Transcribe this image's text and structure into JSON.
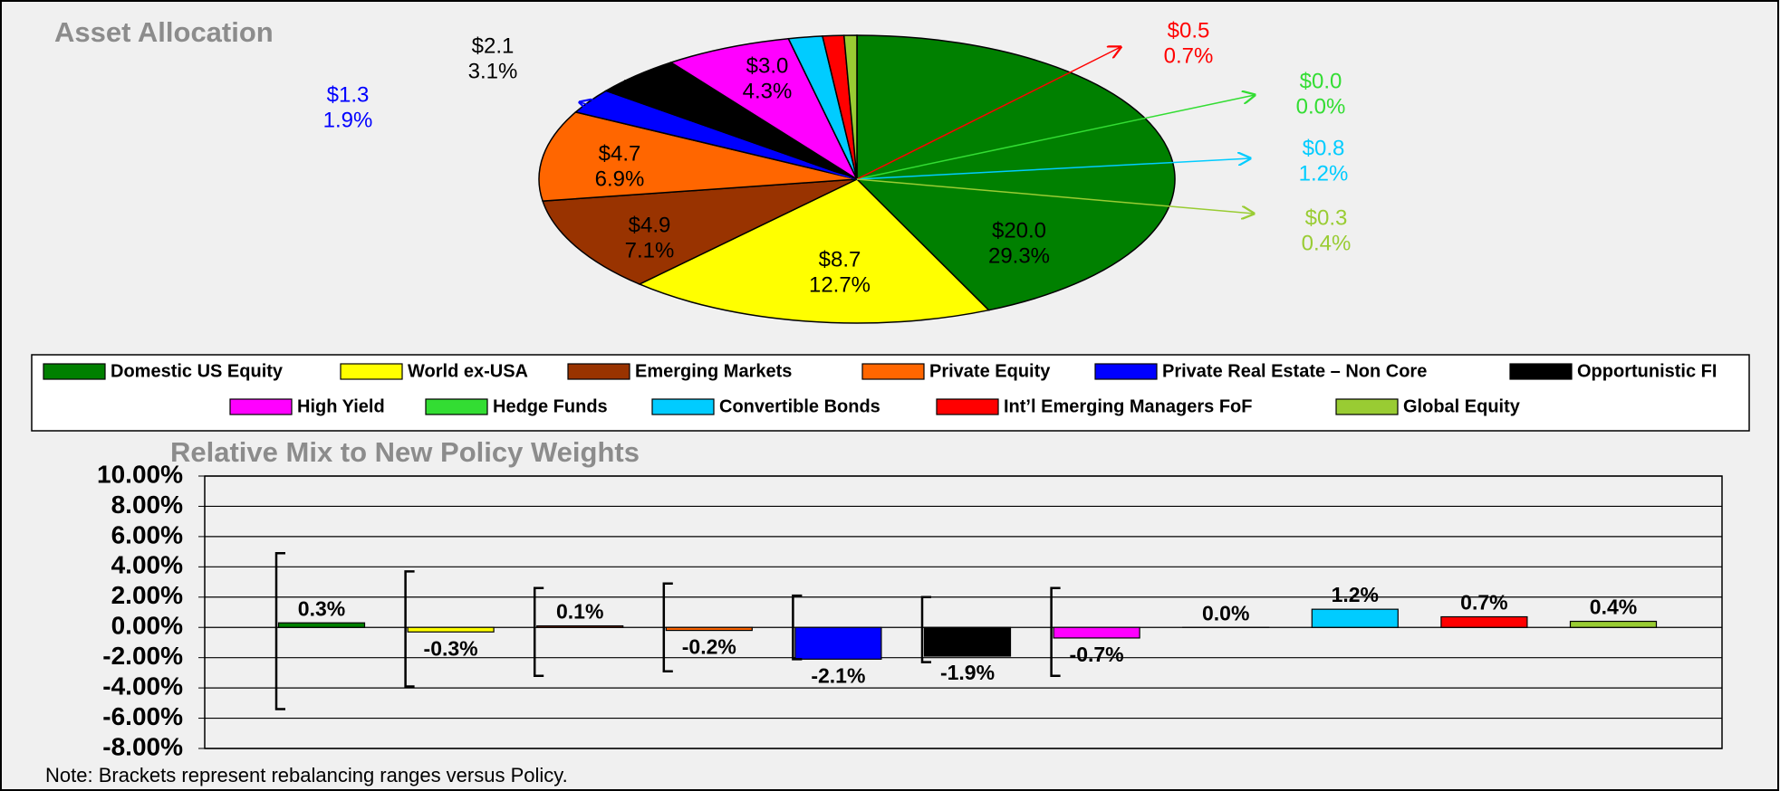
{
  "chart_data": [
    {
      "type": "pie",
      "title": "Asset Allocation",
      "categories": [
        "Domestic US Equity",
        "World ex-USA",
        "Emerging Markets",
        "Private Equity",
        "Private Real Estate – Non Core",
        "Opportunistic FI",
        "High Yield",
        "Hedge Funds",
        "Convertible Bonds",
        "Int’l Emerging Managers FoF",
        "Global Equity"
      ],
      "values": [
        20.0,
        8.7,
        4.9,
        4.7,
        1.3,
        2.1,
        3.0,
        0.0,
        0.8,
        0.5,
        0.3
      ],
      "value_labels": [
        "$20.0",
        "$8.7",
        "$4.9",
        "$4.7",
        "$1.3",
        "$2.1",
        "$3.0",
        "$0.0",
        "$0.8",
        "$0.5",
        "$0.3"
      ],
      "shares": [
        29.3,
        12.7,
        7.1,
        6.9,
        1.9,
        3.1,
        4.3,
        0.0,
        1.2,
        0.7,
        0.4
      ],
      "share_labels": [
        "29.3%",
        "12.7%",
        "7.1%",
        "6.9%",
        "1.9%",
        "3.1%",
        "4.3%",
        "0.0%",
        "1.2%",
        "0.7%",
        "0.4%"
      ],
      "colors": [
        "#008000",
        "#ffff00",
        "#993300",
        "#ff6600",
        "#0000ff",
        "#000000",
        "#ff00ff",
        "#33dd33",
        "#00ccff",
        "#ff0000",
        "#99cc33"
      ],
      "legend": true
    },
    {
      "type": "bar",
      "title": "Relative Mix to New Policy Weights",
      "values": [
        0.3,
        -0.3,
        0.1,
        -0.2,
        -2.1,
        -1.9,
        -0.7,
        0.0,
        1.2,
        0.7,
        0.4
      ],
      "value_labels": [
        "0.3%",
        "-0.3%",
        "0.1%",
        "-0.2%",
        "-2.1%",
        "-1.9%",
        "-0.7%",
        "0.0%",
        "1.2%",
        "0.7%",
        "0.4%"
      ],
      "range_low": [
        -5.4,
        -3.9,
        -3.2,
        -2.9,
        -2.1,
        -2.3,
        -3.2,
        null,
        null,
        null,
        null
      ],
      "range_high": [
        4.9,
        3.7,
        2.6,
        2.9,
        2.1,
        2.0,
        2.6,
        null,
        null,
        null,
        null
      ],
      "colors": [
        "#008000",
        "#ffff00",
        "#993300",
        "#ff6600",
        "#0000ff",
        "#000000",
        "#ff00ff",
        "#33dd33",
        "#00ccff",
        "#ff0000",
        "#99cc33"
      ],
      "ylim": [
        -8,
        10
      ],
      "yticks": [
        {
          "value": -8,
          "label": "-8.00%"
        },
        {
          "value": -6,
          "label": "-6.00%"
        },
        {
          "value": -4,
          "label": "-4.00%"
        },
        {
          "value": -2,
          "label": "-2.00%"
        },
        {
          "value": 0,
          "label": "0.00%"
        },
        {
          "value": 2,
          "label": "2.00%"
        },
        {
          "value": 4,
          "label": "4.00%"
        },
        {
          "value": 6,
          "label": "6.00%"
        },
        {
          "value": 8,
          "label": "8.00%"
        },
        {
          "value": 10,
          "label": "10.00%"
        }
      ],
      "grid": true,
      "note": "Note: Brackets represent rebalancing ranges versus Policy."
    }
  ]
}
